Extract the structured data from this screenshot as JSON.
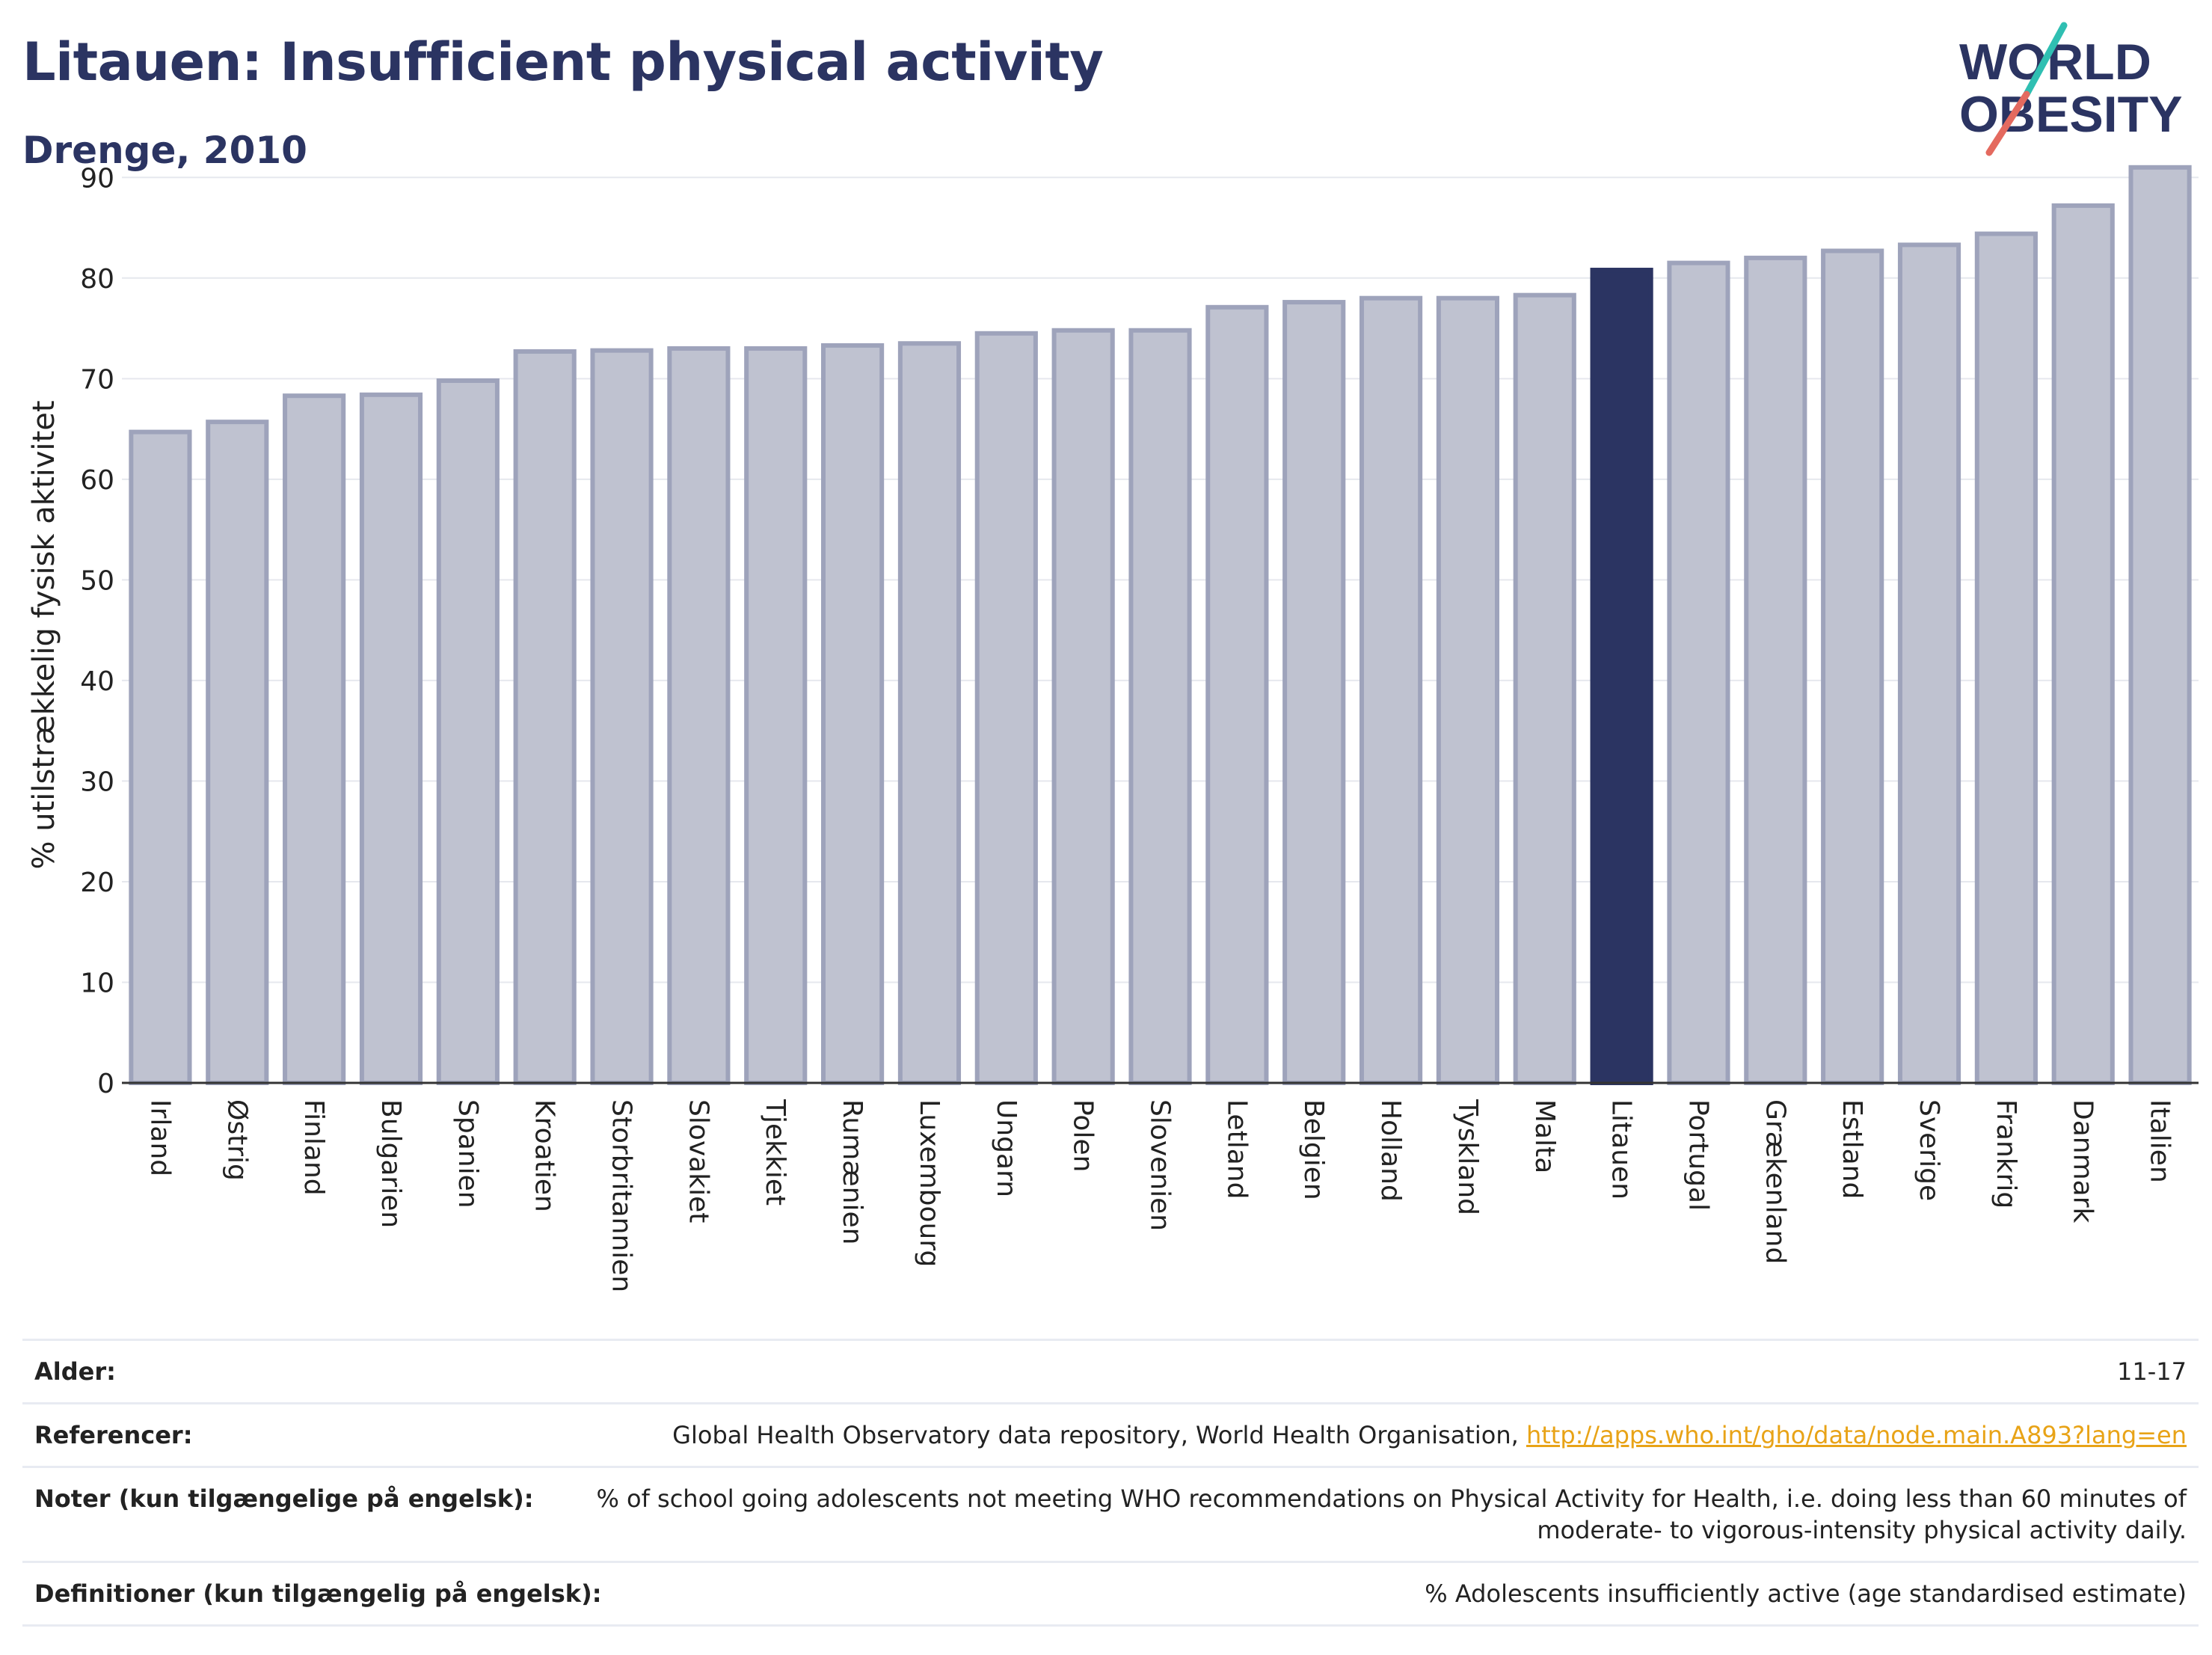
{
  "header": {
    "title": "Litauen: Insufficient physical activity",
    "subtitle": "Drenge, 2010"
  },
  "logo": {
    "line1": "WORLD",
    "line2": "OBESITY"
  },
  "colors": {
    "bar": "#bfc2d0",
    "bar_border": "#9ea3bb",
    "highlight": "#2b3462",
    "title": "#2b3462",
    "link": "#e8a317"
  },
  "chart_data": {
    "type": "bar",
    "ylabel": "% utilstrækkelig fysisk aktivitet",
    "ylim": [
      0,
      95
    ],
    "yticks": [
      0,
      10,
      20,
      30,
      40,
      50,
      60,
      70,
      80,
      90
    ],
    "grid": true,
    "highlight": "Litauen",
    "categories": [
      "Irland",
      "Østrig",
      "Finland",
      "Bulgarien",
      "Spanien",
      "Kroatien",
      "Storbritannien",
      "Slovakiet",
      "Tjekkiet",
      "Rumænien",
      "Luxembourg",
      "Ungarn",
      "Polen",
      "Slovenien",
      "Letland",
      "Belgien",
      "Holland",
      "Tyskland",
      "Malta",
      "Litauen",
      "Portugal",
      "Grækenland",
      "Estland",
      "Sverige",
      "Frankrig",
      "Danmark",
      "Italien"
    ],
    "values": [
      64.7,
      65.7,
      68.3,
      68.4,
      69.8,
      72.7,
      72.8,
      73.0,
      73.0,
      73.3,
      73.5,
      74.5,
      74.8,
      74.8,
      77.1,
      77.6,
      78.0,
      78.0,
      78.3,
      80.8,
      81.5,
      82.0,
      82.7,
      83.3,
      84.4,
      87.2,
      91.0
    ]
  },
  "meta": {
    "age_label": "Alder:",
    "age_value": "11-17",
    "ref_label": "Referencer:",
    "ref_text": "Global Health Observatory data repository, World Health Organisation, ",
    "ref_link": "http://apps.who.int/gho/data/node.main.A893?lang=en",
    "notes_label": "Noter (kun tilgængelige på engelsk):",
    "notes_value": "% of school going adolescents not meeting WHO recommendations on Physical Activity for Health, i.e. doing less than 60 minutes of moderate- to vigorous-intensity physical activity daily.",
    "def_label": "Definitioner (kun tilgængelig på engelsk):",
    "def_value": "% Adolescents insufficiently active (age standardised estimate)"
  }
}
